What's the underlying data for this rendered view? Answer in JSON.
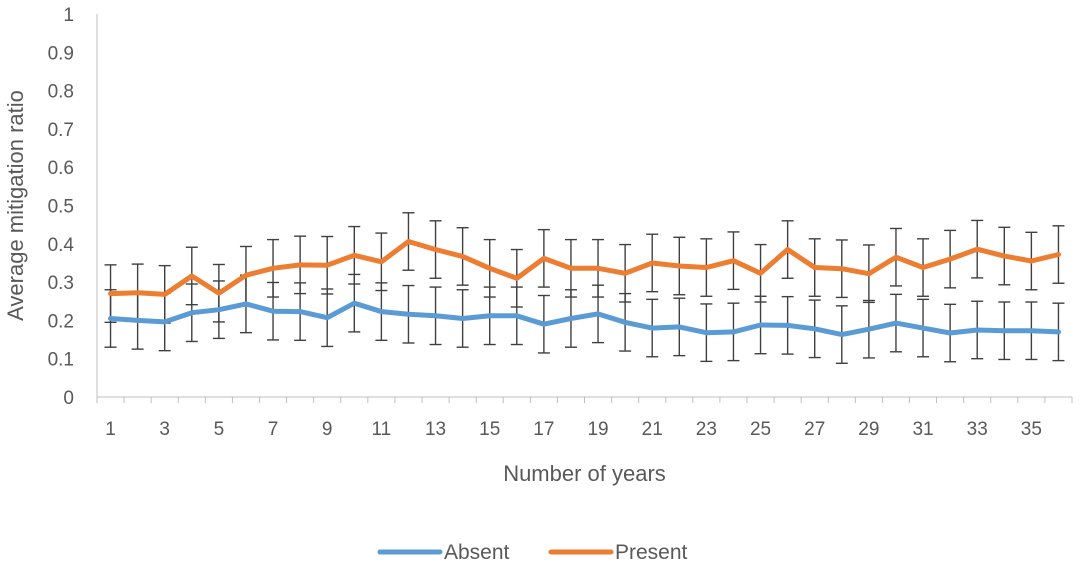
{
  "chart_data": {
    "type": "line",
    "xlabel": "Number of years",
    "ylabel": "Average mitigation ratio",
    "ylim": [
      0,
      1
    ],
    "yticks": [
      "0",
      "0.1",
      "0.2",
      "0.3",
      "0.4",
      "0.5",
      "0.6",
      "0.7",
      "0.8",
      "0.9",
      "1"
    ],
    "x": [
      1,
      2,
      3,
      4,
      5,
      6,
      7,
      8,
      9,
      10,
      11,
      12,
      13,
      14,
      15,
      16,
      17,
      18,
      19,
      20,
      21,
      22,
      23,
      24,
      25,
      26,
      27,
      28,
      29,
      30,
      31,
      32,
      33,
      34,
      35,
      36
    ],
    "xtick_labels": [
      "1",
      "3",
      "5",
      "7",
      "9",
      "11",
      "13",
      "15",
      "17",
      "19",
      "21",
      "23",
      "25",
      "27",
      "29",
      "31",
      "33",
      "35"
    ],
    "error_bar_halfwidth": 0.075,
    "grid": false,
    "legend_position": "bottom",
    "series": [
      {
        "name": "Absent",
        "color": "#5b9bd5",
        "values": [
          0.205,
          0.2,
          0.196,
          0.22,
          0.228,
          0.243,
          0.224,
          0.223,
          0.207,
          0.245,
          0.223,
          0.216,
          0.212,
          0.205,
          0.212,
          0.212,
          0.19,
          0.205,
          0.217,
          0.195,
          0.18,
          0.183,
          0.168,
          0.17,
          0.188,
          0.187,
          0.178,
          0.163,
          0.177,
          0.193,
          0.18,
          0.167,
          0.175,
          0.173,
          0.173,
          0.17
        ]
      },
      {
        "name": "Present",
        "color": "#ed7d31",
        "values": [
          0.27,
          0.272,
          0.268,
          0.316,
          0.271,
          0.318,
          0.336,
          0.345,
          0.344,
          0.37,
          0.353,
          0.406,
          0.385,
          0.367,
          0.336,
          0.31,
          0.362,
          0.336,
          0.336,
          0.323,
          0.35,
          0.342,
          0.338,
          0.356,
          0.323,
          0.385,
          0.338,
          0.335,
          0.322,
          0.365,
          0.338,
          0.36,
          0.386,
          0.368,
          0.355,
          0.372
        ]
      }
    ]
  }
}
